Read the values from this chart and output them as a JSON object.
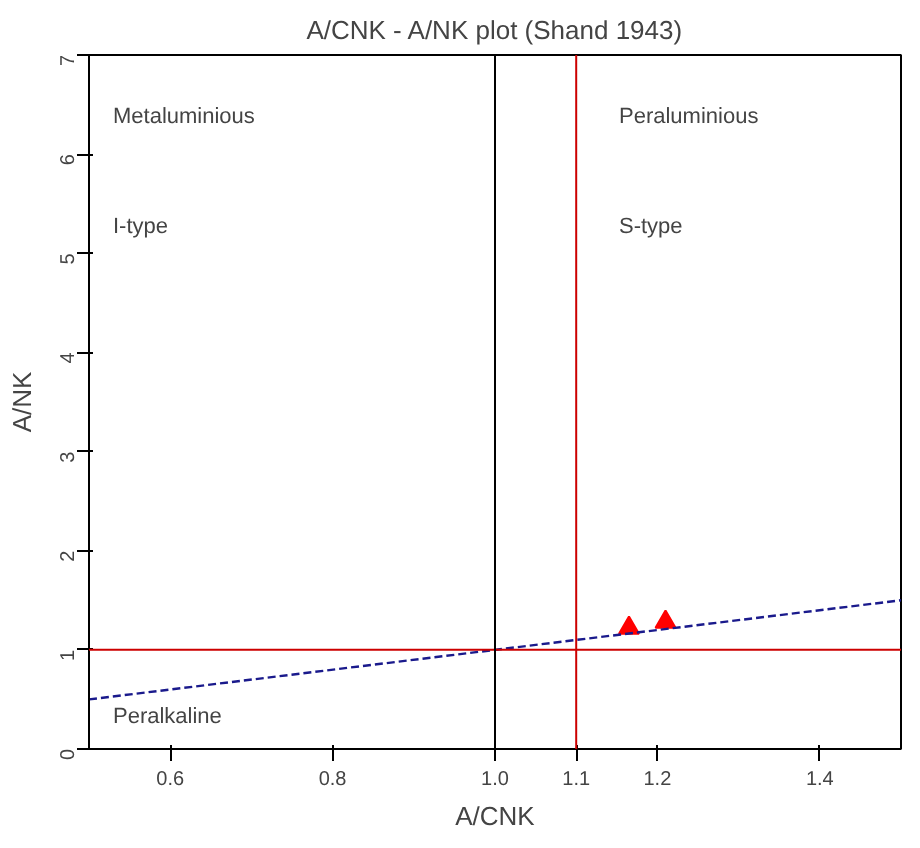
{
  "chart_data": {
    "type": "scatter",
    "title": "A/CNK - A/NK plot (Shand 1943)",
    "xlabel": "A/CNK",
    "ylabel": "A/NK",
    "xlim": [
      0.5,
      1.5
    ],
    "ylim": [
      0,
      7
    ],
    "xticks": [
      0.6,
      0.8,
      {
        "value": 1.0,
        "label": "1.0"
      },
      1.1,
      1.2,
      1.4
    ],
    "yticks": [
      0,
      1,
      2,
      3,
      4,
      5,
      6,
      7
    ],
    "grid": false,
    "series": [
      {
        "color": "#ff0000",
        "marker": "triangle",
        "x": [
          1.165,
          1.21
        ],
        "values": [
          1.22,
          1.28
        ]
      },
      {
        "type": "line",
        "color": "#1a1a8c",
        "line_style": "dashed",
        "x": [
          0.5,
          1.5
        ],
        "values": [
          0.5,
          1.5
        ]
      }
    ],
    "ref_lines": [
      {
        "axis": "y",
        "value": 1,
        "color": "#cc0000"
      },
      {
        "axis": "x",
        "value": 1.0,
        "color": "#000000"
      },
      {
        "axis": "x",
        "value": 1.1,
        "color": "#cc0000"
      }
    ],
    "annotations": [
      "Metaluminious",
      "I-type",
      "Peraluminious",
      "S-type",
      "Peralkaline"
    ]
  }
}
